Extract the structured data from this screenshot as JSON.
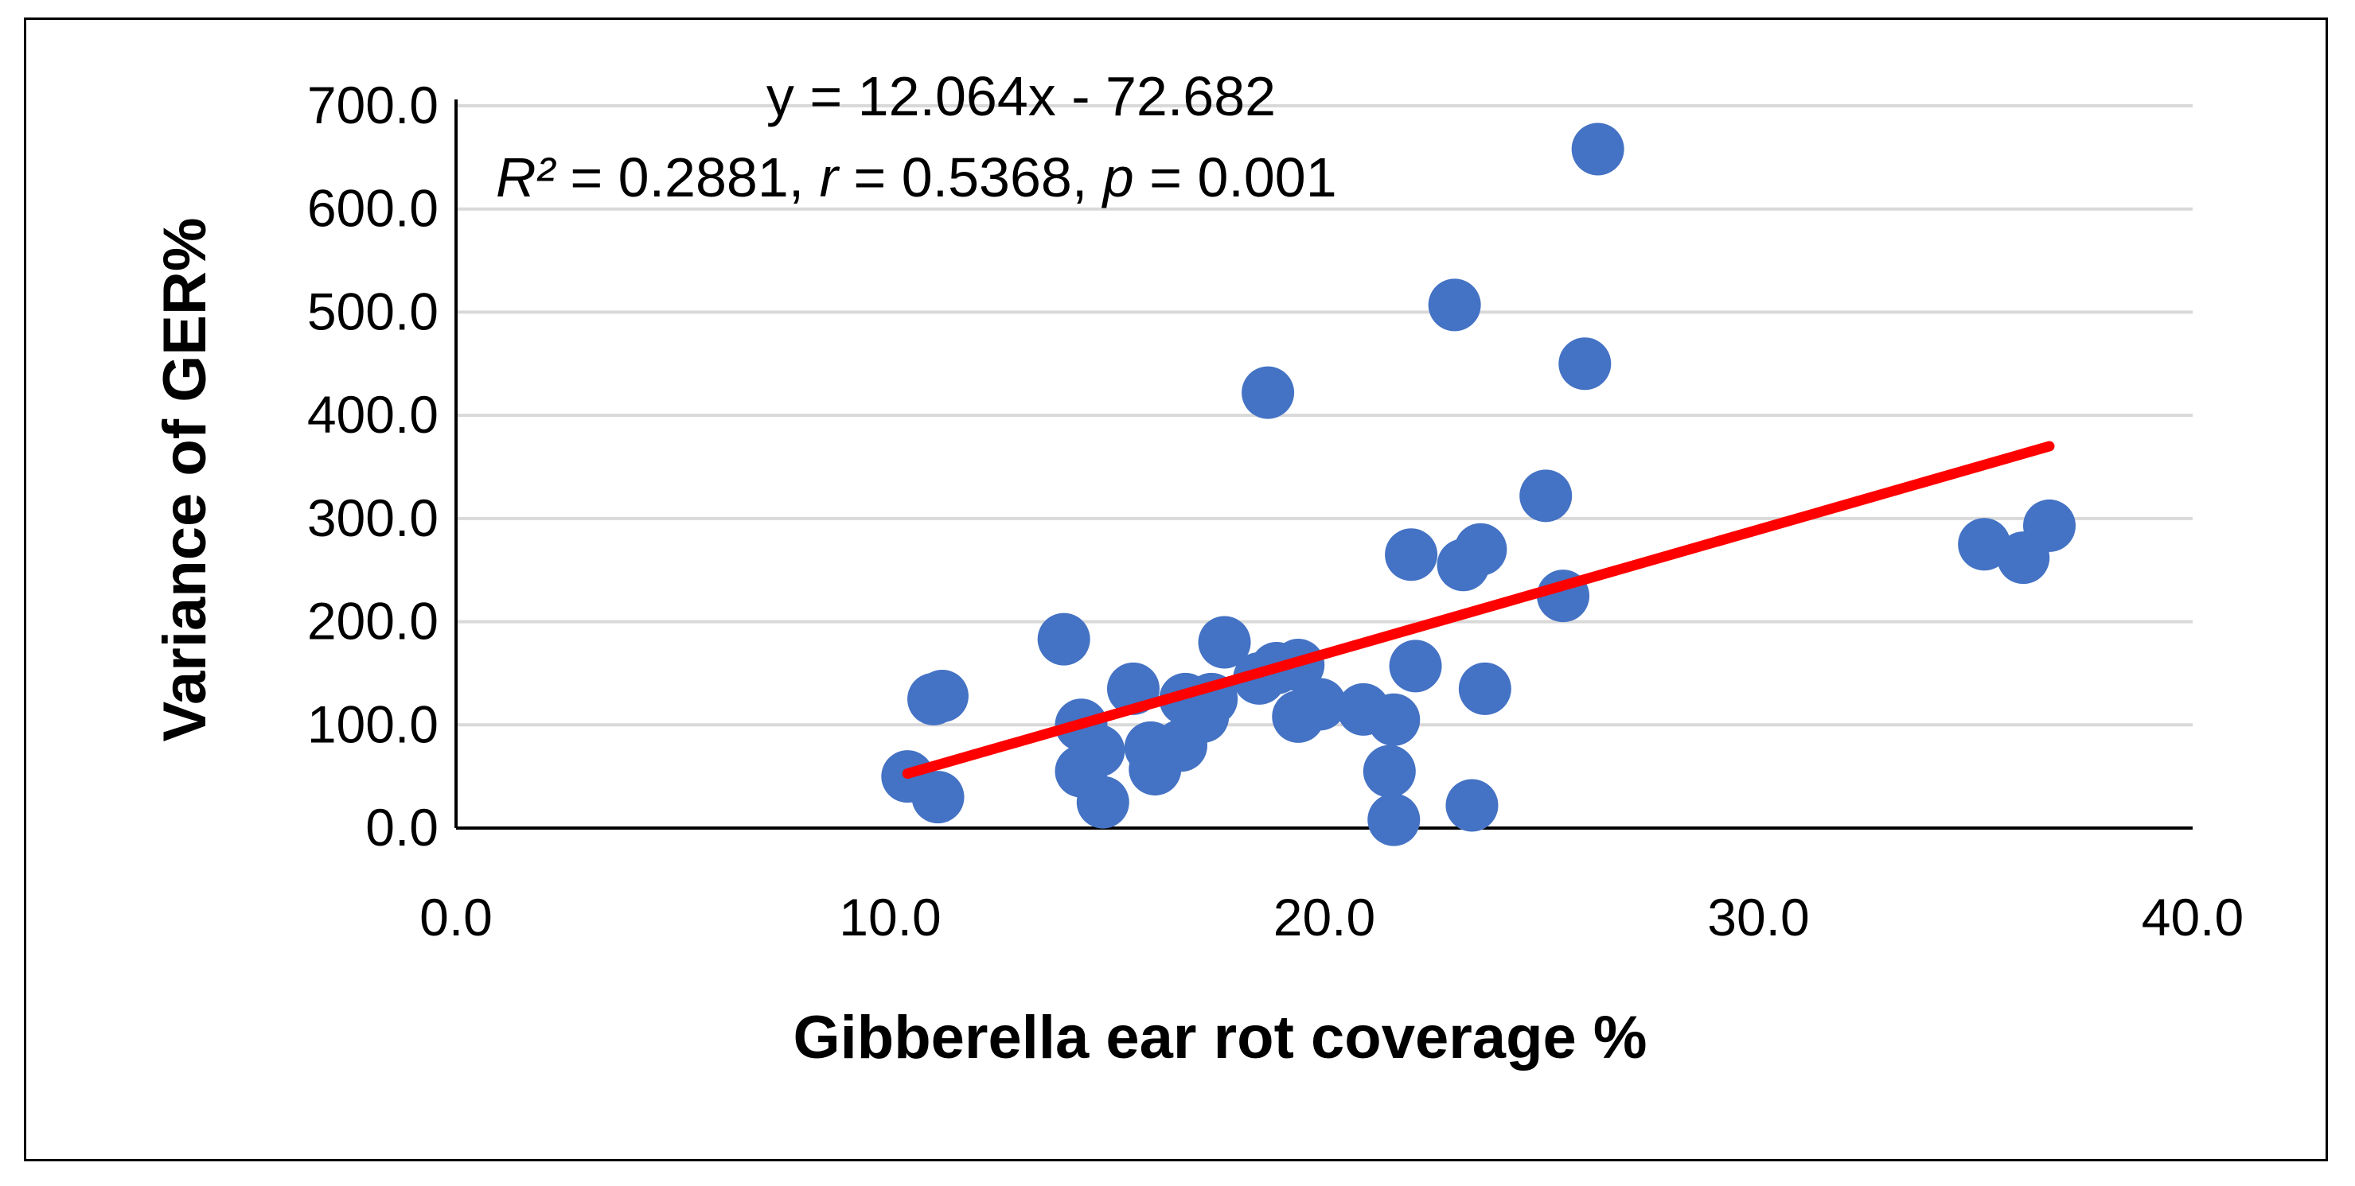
{
  "chart_data": {
    "type": "scatter",
    "xlabel": "Gibberella ear rot coverage %",
    "ylabel": "Variance of GER%",
    "xlim": [
      0,
      40
    ],
    "ylim": [
      0,
      700
    ],
    "xticks": [
      "0.0",
      "10.0",
      "20.0",
      "30.0",
      "40.0"
    ],
    "yticks": [
      "0.0",
      "100.0",
      "200.0",
      "300.0",
      "400.0",
      "500.0",
      "600.0",
      "700.0"
    ],
    "grid": "horizontal",
    "marker_color": "#4472C4",
    "trendline_color": "#FF0000",
    "trendline": {
      "slope": 12.064,
      "intercept": -72.682,
      "x_range": [
        10.4,
        36.7
      ]
    },
    "annotation": {
      "equation": "y = 12.064x - 72.682",
      "r2_label": "R²",
      "r2_value": " = 0.2881, ",
      "r_label": "r",
      "r_value": " = 0.5368, ",
      "p_label": "p",
      "p_value": " = 0.001"
    },
    "series": [
      {
        "name": "GER",
        "points": [
          [
            10.4,
            50
          ],
          [
            11.0,
            125
          ],
          [
            11.2,
            128
          ],
          [
            11.1,
            30
          ],
          [
            14.0,
            183
          ],
          [
            14.4,
            100
          ],
          [
            14.4,
            55
          ],
          [
            14.8,
            75
          ],
          [
            14.9,
            25
          ],
          [
            15.6,
            135
          ],
          [
            16.0,
            78
          ],
          [
            16.1,
            57
          ],
          [
            16.7,
            80
          ],
          [
            16.8,
            125
          ],
          [
            17.2,
            108
          ],
          [
            17.4,
            125
          ],
          [
            17.7,
            180
          ],
          [
            18.5,
            145
          ],
          [
            18.7,
            422
          ],
          [
            18.9,
            155
          ],
          [
            19.4,
            158
          ],
          [
            19.4,
            108
          ],
          [
            19.9,
            120
          ],
          [
            20.9,
            115
          ],
          [
            21.6,
            105
          ],
          [
            21.5,
            55
          ],
          [
            21.6,
            8
          ],
          [
            22.0,
            265
          ],
          [
            22.1,
            157
          ],
          [
            23.0,
            507
          ],
          [
            23.2,
            255
          ],
          [
            23.4,
            22
          ],
          [
            23.6,
            270
          ],
          [
            23.7,
            135
          ],
          [
            25.1,
            322
          ],
          [
            25.5,
            225
          ],
          [
            26.0,
            450
          ],
          [
            26.3,
            658
          ],
          [
            35.2,
            275
          ],
          [
            36.1,
            262
          ],
          [
            36.7,
            293
          ]
        ]
      }
    ]
  }
}
